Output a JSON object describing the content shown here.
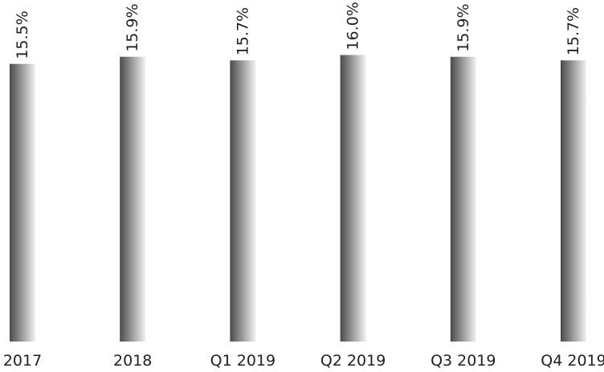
{
  "chart_data": {
    "type": "bar",
    "title": "",
    "xlabel": "",
    "ylabel": "",
    "categories": [
      "2017",
      "2018",
      "Q1 2019",
      "Q2 2019",
      "Q3 2019",
      "Q4 2019"
    ],
    "values": [
      15.5,
      15.9,
      15.7,
      16.0,
      15.9,
      15.7
    ],
    "value_labels": [
      "15.5%",
      "15.9%",
      "15.7%",
      "16.0%",
      "15.9%",
      "15.7%"
    ],
    "ylim": [
      0,
      18.8
    ],
    "grid": false,
    "legend": "none",
    "bar_gradient": [
      "#4a4a4a",
      "#f2f2f2"
    ]
  }
}
